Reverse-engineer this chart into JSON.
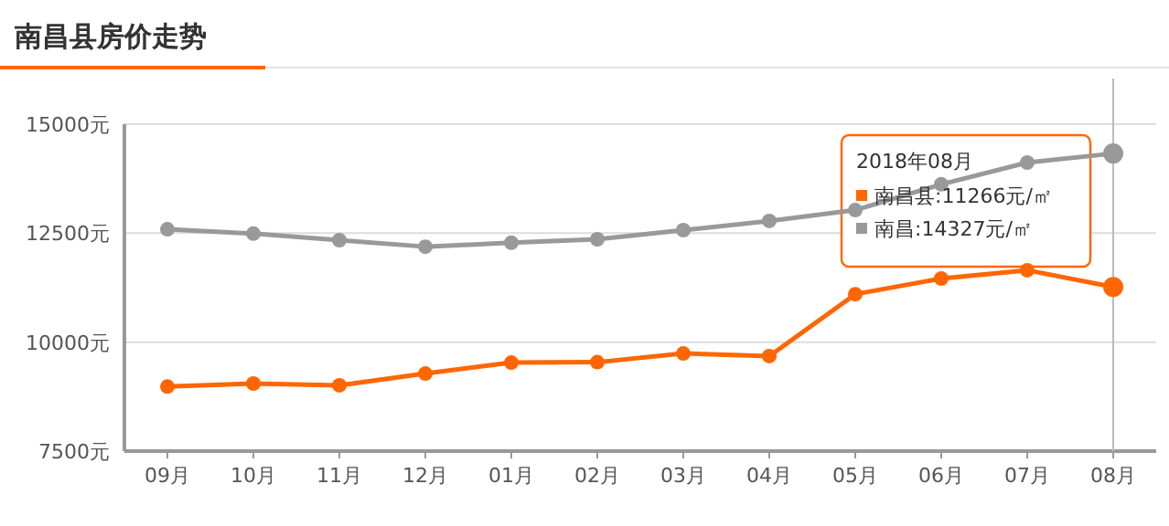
{
  "chart_data": {
    "type": "line",
    "title": "南昌县房价走势",
    "categories": [
      "09月",
      "10月",
      "11月",
      "12月",
      "01月",
      "02月",
      "03月",
      "04月",
      "05月",
      "06月",
      "07月",
      "08月"
    ],
    "series": [
      {
        "color": "#ff6600",
        "values": [
          8980,
          9050,
          9010,
          9280,
          9530,
          9540,
          9740,
          9680,
          11100,
          11460,
          11650,
          11266
        ]
      },
      {
        "color": "#999999",
        "values": [
          12590,
          12490,
          12340,
          12190,
          12280,
          12360,
          12570,
          12780,
          13030,
          13620,
          14120,
          14327
        ]
      }
    ],
    "ylim": [
      7500,
      15000
    ],
    "yticks": [
      {
        "value": 7500,
        "label": "7500元"
      },
      {
        "value": 10000,
        "label": "10000元"
      },
      {
        "value": 12500,
        "label": "12500元"
      },
      {
        "value": 15000,
        "label": "15000元"
      }
    ],
    "grid": "y",
    "marker": "circle",
    "annotations": [
      "2018年08月",
      "南昌县:11266元/㎡",
      "南昌:14327元/㎡"
    ],
    "ref_lines": [
      {
        "axis": "x",
        "value": "08月",
        "color": "#bbbbbb"
      }
    ]
  }
}
